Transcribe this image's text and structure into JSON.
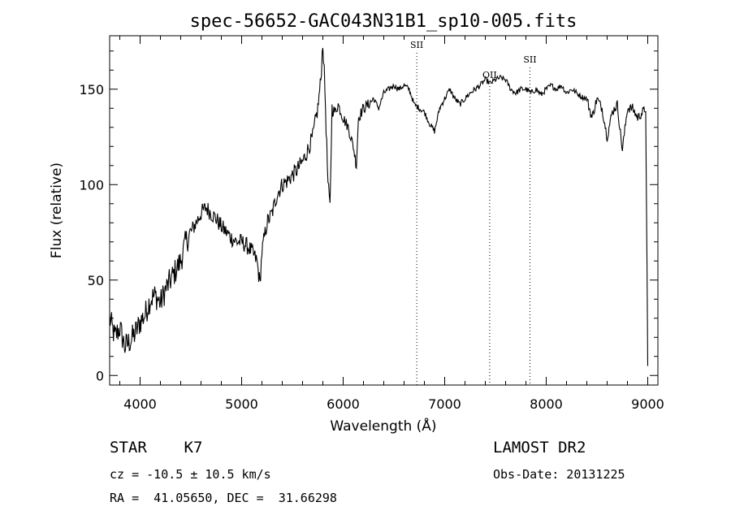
{
  "chart_data": {
    "type": "line",
    "title": "spec-56652-GAC043N31B1_sp10-005.fits",
    "xlabel": "Wavelength (Å)",
    "ylabel": "Flux (relative)",
    "xlim": [
      3700,
      9100
    ],
    "ylim": [
      -5,
      178
    ],
    "x_ticks": [
      4000,
      5000,
      6000,
      7000,
      8000,
      9000
    ],
    "y_ticks": [
      0,
      50,
      100,
      150
    ],
    "line_color": "#000000",
    "spectral_lines": [
      {
        "label": "SII",
        "wavelength": 6725
      },
      {
        "label": "OII",
        "wavelength": 7443
      },
      {
        "label": "SII",
        "wavelength": 7840
      }
    ],
    "series": [
      {
        "x": [
          3700,
          3750,
          3800,
          3850,
          3900,
          3950,
          4000,
          4050,
          4100,
          4150,
          4200,
          4250,
          4300,
          4350,
          4400,
          4450,
          4500,
          4550,
          4600,
          4650,
          4700,
          4750,
          4800,
          4850,
          4900,
          4950,
          5000,
          5050,
          5100,
          5150,
          5180,
          5200,
          5250,
          5300,
          5350,
          5400,
          5450,
          5500,
          5550,
          5600,
          5650,
          5700,
          5750,
          5780,
          5800,
          5820,
          5850,
          5870,
          5890,
          5920,
          5950,
          6000,
          6050,
          6100,
          6130,
          6150,
          6200,
          6250,
          6300,
          6350,
          6400,
          6450,
          6500,
          6550,
          6600,
          6650,
          6700,
          6750,
          6800,
          6850,
          6900,
          6950,
          7000,
          7050,
          7100,
          7150,
          7200,
          7250,
          7300,
          7350,
          7400,
          7450,
          7500,
          7550,
          7600,
          7650,
          7700,
          7750,
          7800,
          7850,
          7900,
          7950,
          8000,
          8050,
          8100,
          8150,
          8200,
          8250,
          8300,
          8350,
          8400,
          8450,
          8500,
          8550,
          8600,
          8650,
          8700,
          8750,
          8800,
          8850,
          8900,
          8950,
          8980,
          9000
        ],
        "y": [
          30,
          20,
          25,
          15,
          18,
          22,
          28,
          32,
          40,
          42,
          38,
          45,
          50,
          55,
          60,
          70,
          75,
          80,
          85,
          88,
          85,
          82,
          78,
          75,
          72,
          70,
          70,
          68,
          65,
          60,
          48,
          65,
          80,
          85,
          95,
          100,
          102,
          105,
          108,
          112,
          118,
          125,
          140,
          155,
          175,
          150,
          100,
          88,
          140,
          138,
          142,
          135,
          130,
          120,
          110,
          135,
          140,
          142,
          145,
          140,
          148,
          150,
          152,
          150,
          152,
          150,
          142,
          140,
          138,
          132,
          128,
          140,
          145,
          150,
          145,
          142,
          145,
          148,
          150,
          152,
          155,
          153,
          155,
          156,
          155,
          150,
          148,
          150,
          150,
          148,
          150,
          147,
          150,
          152,
          150,
          152,
          148,
          150,
          148,
          146,
          145,
          135,
          145,
          140,
          125,
          138,
          142,
          118,
          140,
          140,
          135,
          138,
          140,
          5
        ]
      }
    ]
  },
  "info": {
    "object_type": "STAR    K7",
    "source": "LAMOST DR2",
    "cz": "cz = -10.5 ± 10.5 km/s",
    "obs_date": "Obs-Date: 20131225",
    "radec": "RA =  41.05650, DEC =  31.66298"
  }
}
